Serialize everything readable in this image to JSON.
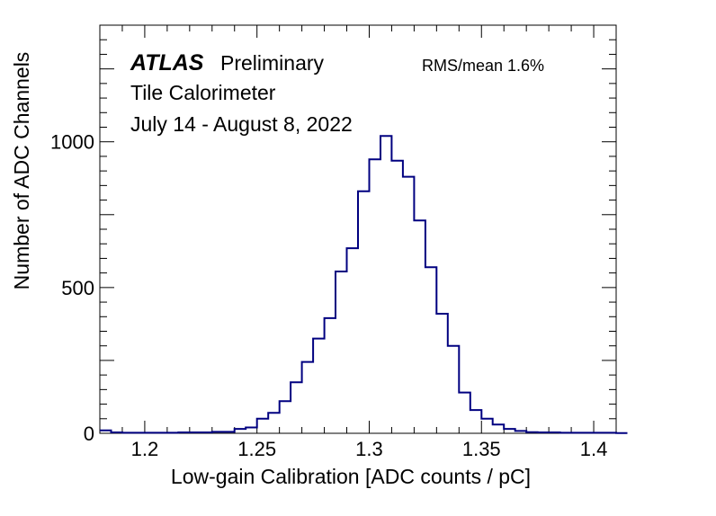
{
  "chart_data": {
    "type": "histogram",
    "xlabel": "Low-gain Calibration [ADC counts / pC]",
    "ylabel": "Number of ADC Channels",
    "xlim": [
      1.18,
      1.41
    ],
    "ylim": [
      0,
      1400
    ],
    "x_ticks": [
      {
        "value": 1.2,
        "label": "1.2"
      },
      {
        "value": 1.25,
        "label": "1.25"
      },
      {
        "value": 1.3,
        "label": "1.3"
      },
      {
        "value": 1.35,
        "label": "1.35"
      },
      {
        "value": 1.4,
        "label": "1.4"
      }
    ],
    "y_ticks": [
      {
        "value": 0,
        "label": "0"
      },
      {
        "value": 500,
        "label": "500"
      },
      {
        "value": 1000,
        "label": "1000"
      }
    ],
    "bin_width": 0.005,
    "bin_edges_start": 1.18,
    "counts": [
      10,
      3,
      2,
      2,
      2,
      2,
      2,
      3,
      3,
      3,
      5,
      5,
      15,
      20,
      50,
      70,
      110,
      175,
      245,
      325,
      395,
      555,
      635,
      830,
      940,
      1020,
      935,
      880,
      730,
      570,
      410,
      300,
      140,
      80,
      50,
      30,
      15,
      8,
      4,
      3,
      3,
      2,
      2,
      2,
      2,
      2,
      1
    ],
    "line_color": "#000080",
    "annotations": {
      "experiment": "ATLAS",
      "status": "Preliminary",
      "detector": "Tile Calorimeter",
      "period": "July 14 - August 8, 2022",
      "rms_mean": "RMS/mean  1.6%"
    }
  }
}
